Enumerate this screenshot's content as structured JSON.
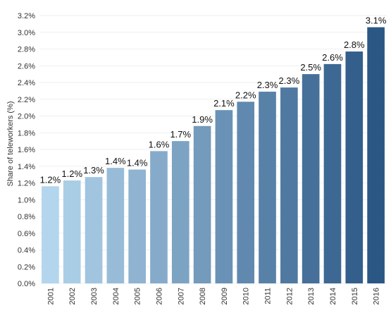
{
  "chart_data": {
    "type": "bar",
    "title": "",
    "xlabel": "",
    "ylabel": "Share of teleworkers (%)",
    "ylim": [
      0,
      3.2
    ],
    "yticks": [
      "0.0%",
      "0.2%",
      "0.4%",
      "0.6%",
      "0.8%",
      "1.0%",
      "1.2%",
      "1.4%",
      "1.6%",
      "1.8%",
      "2.0%",
      "2.2%",
      "2.4%",
      "2.6%",
      "2.8%",
      "3.0%",
      "3.2%"
    ],
    "ytick_values": [
      0,
      0.2,
      0.4,
      0.6,
      0.8,
      1.0,
      1.2,
      1.4,
      1.6,
      1.8,
      2.0,
      2.2,
      2.4,
      2.6,
      2.8,
      3.0,
      3.2
    ],
    "categories": [
      "2001",
      "2002",
      "2003",
      "2004",
      "2005",
      "2006",
      "2007",
      "2008",
      "2009",
      "2010",
      "2011",
      "2012",
      "2013",
      "2014",
      "2015",
      "2016"
    ],
    "values": [
      1.16,
      1.23,
      1.27,
      1.38,
      1.36,
      1.58,
      1.7,
      1.88,
      2.07,
      2.17,
      2.29,
      2.34,
      2.5,
      2.62,
      2.77,
      3.06
    ],
    "data_labels": [
      "1.2%",
      "1.2%",
      "1.3%",
      "1.4%",
      "1.4%",
      "1.6%",
      "1.7%",
      "1.9%",
      "2.1%",
      "2.2%",
      "2.3%",
      "2.3%",
      "2.5%",
      "2.6%",
      "2.8%",
      "3.1%"
    ],
    "grid": true,
    "legend": "none",
    "colors": {
      "bar_start": "#b3d5ed",
      "bar_end": "#2b5785",
      "grid": "#efefef",
      "text": "#111111"
    }
  }
}
